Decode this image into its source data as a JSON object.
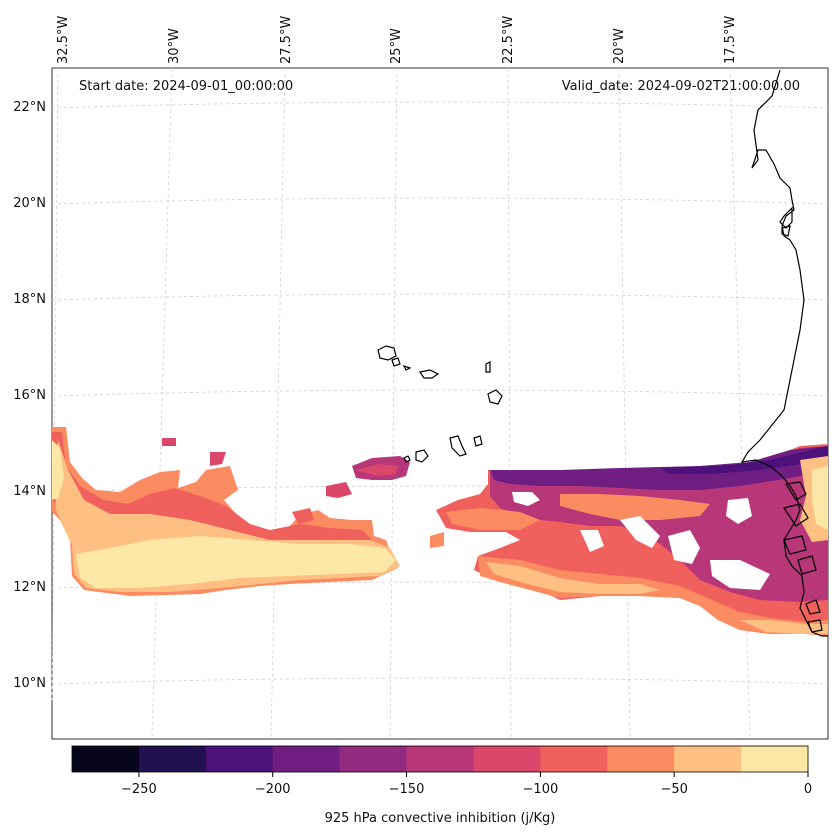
{
  "header": {
    "start_date": "Start date: 2024-09-01_00:00:00",
    "valid_date": "Valid_date: 2024-09-02T21:00:00.00"
  },
  "longitude_labels": [
    "32.5°W",
    "30°W",
    "27.5°W",
    "25°W",
    "22.5°W",
    "20°W",
    "17.5°W"
  ],
  "latitude_labels": [
    "22°N",
    "20°N",
    "18°N",
    "16°N",
    "14°N",
    "12°N",
    "10°N"
  ],
  "colorbar": {
    "label": "925 hPa convective inhibition (j/Kg)",
    "tick_labels": [
      "−250",
      "−200",
      "−150",
      "−100",
      "−50",
      "0"
    ],
    "levels": [
      -275,
      -250,
      -225,
      -200,
      -175,
      -150,
      -125,
      -100,
      -75,
      -50,
      -25,
      0
    ],
    "colors": [
      "#07061c",
      "#221150",
      "#4c117a",
      "#701e81",
      "#922a7f",
      "#b83779",
      "#db476a",
      "#f0605c",
      "#fb8b60",
      "#febf82",
      "#fde7a6"
    ]
  },
  "map": {
    "region": "Eastern tropical Atlantic and West African coast",
    "projection": "Lambert conformal",
    "field": "925 hPa convective inhibition",
    "units": "j/Kg"
  }
}
